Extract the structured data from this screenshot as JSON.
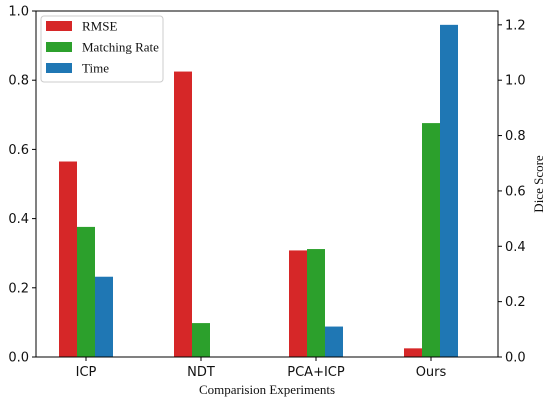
{
  "chart_data": {
    "type": "bar",
    "categories": [
      "ICP",
      "NDT",
      "PCA+ICP",
      "Ours"
    ],
    "xlabel": "Comparision   Experiments",
    "ylabel": "",
    "y2label": "Dice  Score",
    "ylim": [
      0,
      1.0
    ],
    "y2lim": [
      0,
      1.25
    ],
    "yticks": [
      "0.0",
      "0.2",
      "0.4",
      "0.6",
      "0.8",
      "1.0"
    ],
    "y2ticks": [
      "0.0",
      "0.2",
      "0.4",
      "0.6",
      "0.8",
      "1.0",
      "1.2"
    ],
    "legend_position": "top-left",
    "grid": false,
    "series": [
      {
        "name": "RMSE",
        "axis": "left",
        "color": "#d62728",
        "values": [
          0.565,
          0.825,
          0.308,
          0.025
        ]
      },
      {
        "name": "Matching Rate",
        "axis": "left",
        "color": "#2ca02c",
        "values": [
          0.376,
          0.098,
          0.312,
          0.676
        ]
      },
      {
        "name": "Time",
        "axis": "right",
        "color": "#1f77b4",
        "values": [
          0.29,
          0.0,
          0.11,
          1.2
        ]
      }
    ]
  }
}
